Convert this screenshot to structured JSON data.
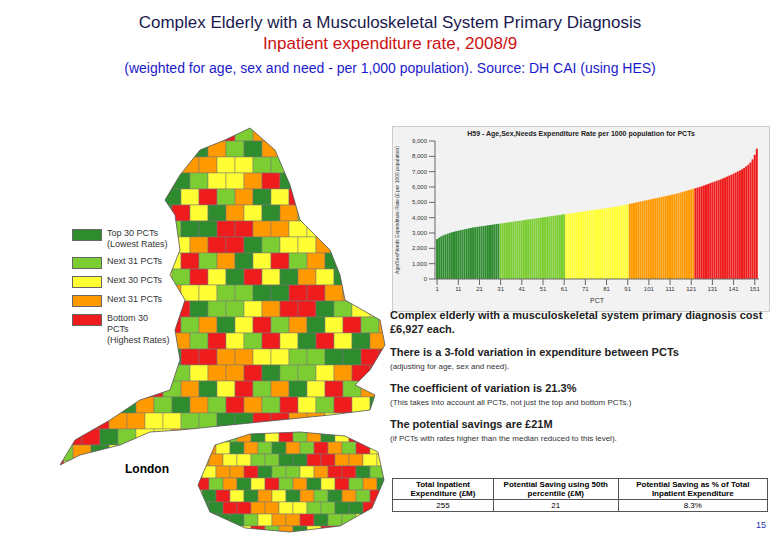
{
  "header": {
    "title": "Complex Elderly with a Musculoskeletal System Primary Diagnosis",
    "subtitle": "Inpatient expenditure rate, 2008/9",
    "note": "(weighted for age, sex and need - per 1,000 population). Source: DH CAI (using HES)"
  },
  "map": {
    "legend": [
      {
        "lines": [
          "Top 30 PCTs",
          "(Lowest Rates)"
        ],
        "color": "#2e8b2e"
      },
      {
        "lines": [
          "Next 31 PCTs"
        ],
        "color": "#7ccd32"
      },
      {
        "lines": [
          "Next 30 PCTs"
        ],
        "color": "#ffff33"
      },
      {
        "lines": [
          "Next 31 PCTs"
        ],
        "color": "#ff9900"
      },
      {
        "lines": [
          "Bottom 30 PCTs",
          "(Highest Rates)"
        ],
        "color": "#ee1c1c"
      }
    ],
    "inset_label": "London"
  },
  "chart_data": {
    "type": "bar",
    "title": "H59 - Age,Sex,Needs Expenditure Rate per 1000 population for PCTs",
    "x_label": "PCT",
    "y_label": "Age/Sex/Needs Expenditure Rate (£ per 1000 population)",
    "x": [
      1,
      2,
      3,
      4,
      5,
      6,
      7,
      8,
      9,
      10,
      11,
      12,
      13,
      14,
      15,
      16,
      17,
      18,
      19,
      20,
      21,
      22,
      23,
      24,
      25,
      26,
      27,
      28,
      29,
      30,
      31,
      32,
      33,
      34,
      35,
      36,
      37,
      38,
      39,
      40,
      41,
      42,
      43,
      44,
      45,
      46,
      47,
      48,
      49,
      50,
      51,
      52,
      53,
      54,
      55,
      56,
      57,
      58,
      59,
      60,
      61,
      62,
      63,
      64,
      65,
      66,
      67,
      68,
      69,
      70,
      71,
      72,
      73,
      74,
      75,
      76,
      77,
      78,
      79,
      80,
      81,
      82,
      83,
      84,
      85,
      86,
      87,
      88,
      89,
      90,
      91,
      92,
      93,
      94,
      95,
      96,
      97,
      98,
      99,
      100,
      101,
      102,
      103,
      104,
      105,
      106,
      107,
      108,
      109,
      110,
      111,
      112,
      113,
      114,
      115,
      116,
      117,
      118,
      119,
      120,
      121,
      122,
      123,
      124,
      125,
      126,
      127,
      128,
      129,
      130,
      131,
      132,
      133,
      134,
      135,
      136,
      137,
      138,
      139,
      140,
      141,
      142,
      143,
      144,
      145,
      146,
      147,
      148,
      149,
      150,
      151,
      152
    ],
    "values": [
      2600,
      2700,
      2780,
      2850,
      2900,
      2950,
      3000,
      3050,
      3080,
      3120,
      3150,
      3180,
      3210,
      3240,
      3270,
      3300,
      3330,
      3360,
      3380,
      3400,
      3420,
      3440,
      3460,
      3480,
      3500,
      3520,
      3540,
      3560,
      3580,
      3600,
      3620,
      3640,
      3660,
      3680,
      3700,
      3720,
      3740,
      3760,
      3780,
      3800,
      3820,
      3840,
      3860,
      3880,
      3900,
      3920,
      3940,
      3960,
      3980,
      4000,
      4020,
      4040,
      4060,
      4080,
      4100,
      4120,
      4140,
      4160,
      4180,
      4200,
      4220,
      4240,
      4260,
      4280,
      4300,
      4320,
      4340,
      4360,
      4380,
      4400,
      4420,
      4440,
      4460,
      4480,
      4500,
      4520,
      4540,
      4560,
      4580,
      4600,
      4620,
      4640,
      4660,
      4680,
      4700,
      4720,
      4750,
      4780,
      4810,
      4840,
      4870,
      4900,
      4930,
      4960,
      4990,
      5020,
      5050,
      5080,
      5110,
      5140,
      5170,
      5200,
      5230,
      5260,
      5290,
      5320,
      5350,
      5380,
      5410,
      5440,
      5470,
      5500,
      5530,
      5560,
      5600,
      5640,
      5680,
      5720,
      5760,
      5800,
      5840,
      5880,
      5920,
      5960,
      6000,
      6050,
      6100,
      6150,
      6200,
      6250,
      6300,
      6350,
      6400,
      6450,
      6500,
      6560,
      6620,
      6680,
      6740,
      6800,
      6870,
      6940,
      7010,
      7080,
      7160,
      7250,
      7350,
      7460,
      7600,
      7800,
      8100,
      8500
    ],
    "colors": [
      "#2e8b2e",
      "#2e8b2e",
      "#2e8b2e",
      "#2e8b2e",
      "#2e8b2e",
      "#2e8b2e",
      "#2e8b2e",
      "#2e8b2e",
      "#2e8b2e",
      "#2e8b2e",
      "#2e8b2e",
      "#2e8b2e",
      "#2e8b2e",
      "#2e8b2e",
      "#2e8b2e",
      "#2e8b2e",
      "#2e8b2e",
      "#2e8b2e",
      "#2e8b2e",
      "#2e8b2e",
      "#2e8b2e",
      "#2e8b2e",
      "#2e8b2e",
      "#2e8b2e",
      "#2e8b2e",
      "#2e8b2e",
      "#2e8b2e",
      "#2e8b2e",
      "#2e8b2e",
      "#2e8b2e",
      "#7ccd32",
      "#7ccd32",
      "#7ccd32",
      "#7ccd32",
      "#7ccd32",
      "#7ccd32",
      "#7ccd32",
      "#7ccd32",
      "#7ccd32",
      "#7ccd32",
      "#7ccd32",
      "#7ccd32",
      "#7ccd32",
      "#7ccd32",
      "#7ccd32",
      "#7ccd32",
      "#7ccd32",
      "#7ccd32",
      "#7ccd32",
      "#7ccd32",
      "#7ccd32",
      "#7ccd32",
      "#7ccd32",
      "#7ccd32",
      "#7ccd32",
      "#7ccd32",
      "#7ccd32",
      "#7ccd32",
      "#7ccd32",
      "#7ccd32",
      "#7ccd32",
      "#ffff33",
      "#ffff33",
      "#ffff33",
      "#ffff33",
      "#ffff33",
      "#ffff33",
      "#ffff33",
      "#ffff33",
      "#ffff33",
      "#ffff33",
      "#ffff33",
      "#ffff33",
      "#ffff33",
      "#ffff33",
      "#ffff33",
      "#ffff33",
      "#ffff33",
      "#ffff33",
      "#ffff33",
      "#ffff33",
      "#ffff33",
      "#ffff33",
      "#ffff33",
      "#ffff33",
      "#ffff33",
      "#ffff33",
      "#ffff33",
      "#ffff33",
      "#ffff33",
      "#ffff33",
      "#ff9900",
      "#ff9900",
      "#ff9900",
      "#ff9900",
      "#ff9900",
      "#ff9900",
      "#ff9900",
      "#ff9900",
      "#ff9900",
      "#ff9900",
      "#ff9900",
      "#ff9900",
      "#ff9900",
      "#ff9900",
      "#ff9900",
      "#ff9900",
      "#ff9900",
      "#ff9900",
      "#ff9900",
      "#ff9900",
      "#ff9900",
      "#ff9900",
      "#ff9900",
      "#ff9900",
      "#ff9900",
      "#ff9900",
      "#ff9900",
      "#ff9900",
      "#ff9900",
      "#ff9900",
      "#ff9900",
      "#ee1c1c",
      "#ee1c1c",
      "#ee1c1c",
      "#ee1c1c",
      "#ee1c1c",
      "#ee1c1c",
      "#ee1c1c",
      "#ee1c1c",
      "#ee1c1c",
      "#ee1c1c",
      "#ee1c1c",
      "#ee1c1c",
      "#ee1c1c",
      "#ee1c1c",
      "#ee1c1c",
      "#ee1c1c",
      "#ee1c1c",
      "#ee1c1c",
      "#ee1c1c",
      "#ee1c1c",
      "#ee1c1c",
      "#ee1c1c",
      "#ee1c1c",
      "#ee1c1c",
      "#ee1c1c",
      "#ee1c1c",
      "#ee1c1c",
      "#ee1c1c",
      "#ee1c1c",
      "#ee1c1c"
    ],
    "xlim": [
      0,
      153
    ],
    "xticks": [
      1,
      11,
      21,
      31,
      41,
      51,
      61,
      71,
      81,
      91,
      101,
      111,
      121,
      131,
      141,
      151
    ],
    "ylim": [
      0,
      9000
    ],
    "yticks": [
      0,
      {
        "value": 1000,
        "label": "1,000"
      },
      {
        "value": 2000,
        "label": "2,000"
      },
      {
        "value": 3000,
        "label": "3,000"
      },
      {
        "value": 4000,
        "label": "4,000"
      },
      {
        "value": 5000,
        "label": "5,000"
      },
      {
        "value": 6000,
        "label": "6,000"
      },
      {
        "value": 7000,
        "label": "7,000"
      },
      {
        "value": 8000,
        "label": "8,000"
      },
      {
        "value": 9000,
        "label": "9,000"
      }
    ],
    "grid": false
  },
  "findings": [
    {
      "headline": "Complex elderly with a musculoskeletal system primary diagnosis cost £6,927 each."
    },
    {
      "headline": "There is a 3-fold variation in expenditure between PCTs",
      "detail": "(adjusting for age, sex and need)."
    },
    {
      "headline": "The coefficient of variation is 21.3%",
      "detail": "(This takes into account all PCTs, not just the top and bottom PCTs.)"
    },
    {
      "headline": "The potential savings are £21M",
      "detail": "(if PCTs with rates higher than the median reduced to this level)."
    }
  ],
  "table": {
    "headers": [
      "Total Inpatient Expenditure (£M)",
      "Potential Saving using 50th percentile (£M)",
      "Potential Saving as % of Total Inpatient Expenditure"
    ],
    "rows": [
      [
        "255",
        "21",
        "8.3%"
      ]
    ]
  },
  "page_number": "15"
}
